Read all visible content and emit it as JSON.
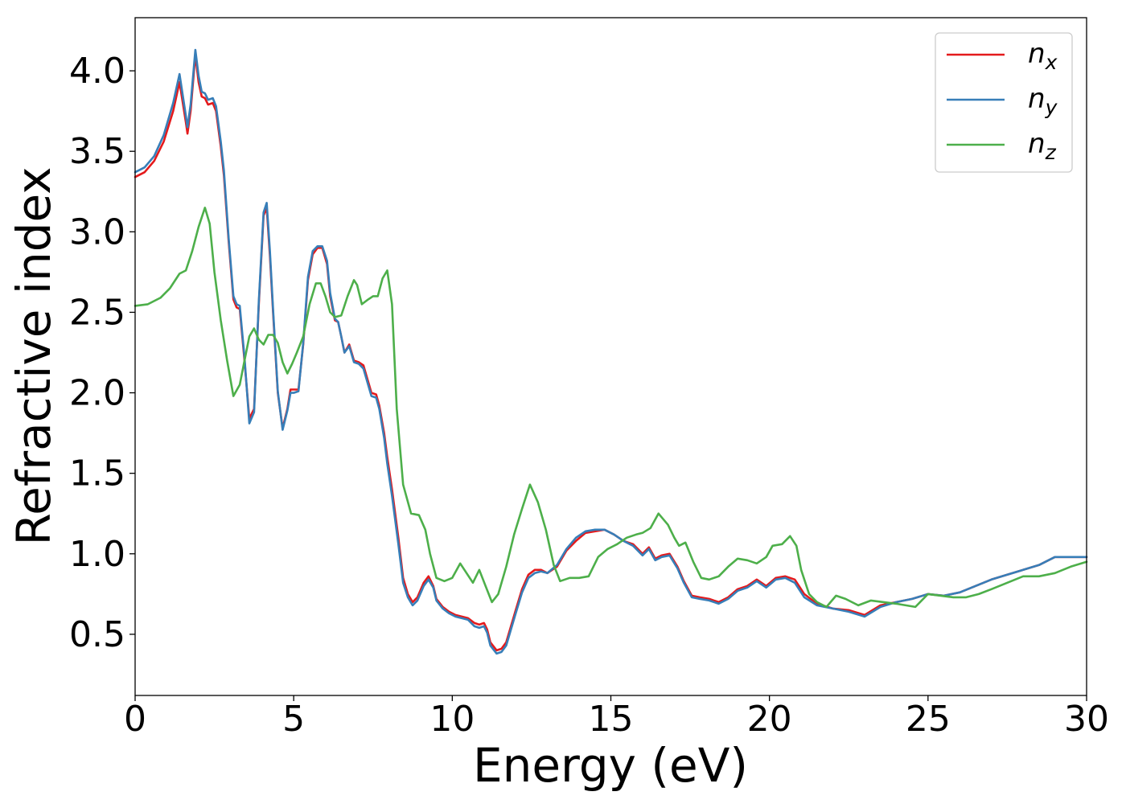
{
  "chart_data": {
    "type": "line",
    "title": "",
    "xlabel": "Energy (eV)",
    "ylabel": "Refractive index",
    "xlim": [
      0,
      30
    ],
    "ylim": [
      0.12,
      4.33
    ],
    "xticks": [
      {
        "value": 0,
        "label": "0"
      },
      {
        "value": 5,
        "label": "5"
      },
      {
        "value": 10,
        "label": "10"
      },
      {
        "value": 15,
        "label": "15"
      },
      {
        "value": 20,
        "label": "20"
      },
      {
        "value": 25,
        "label": "25"
      },
      {
        "value": 30,
        "label": "30"
      }
    ],
    "yticks": [
      {
        "value": 0.5,
        "label": "0.5"
      },
      {
        "value": 1.0,
        "label": "1.0"
      },
      {
        "value": 1.5,
        "label": "1.5"
      },
      {
        "value": 2.0,
        "label": "2.0"
      },
      {
        "value": 2.5,
        "label": "2.5"
      },
      {
        "value": 3.0,
        "label": "3.0"
      },
      {
        "value": 3.5,
        "label": "3.5"
      },
      {
        "value": 4.0,
        "label": "4.0"
      }
    ],
    "grid": false,
    "legend_position": "top-right",
    "series": [
      {
        "name": "n_x",
        "name_base": "n",
        "name_sub": "x",
        "color": "#e41a1c",
        "x": [
          0,
          0.3,
          0.6,
          0.9,
          1.2,
          1.4,
          1.6,
          1.65,
          1.75,
          1.9,
          2.0,
          2.1,
          2.2,
          2.3,
          2.45,
          2.55,
          2.7,
          2.8,
          2.95,
          3.1,
          3.2,
          3.3,
          3.45,
          3.6,
          3.75,
          3.9,
          4.05,
          4.15,
          4.25,
          4.35,
          4.5,
          4.65,
          4.8,
          4.9,
          5.0,
          5.15,
          5.3,
          5.45,
          5.6,
          5.75,
          5.9,
          6.05,
          6.15,
          6.3,
          6.4,
          6.5,
          6.6,
          6.75,
          6.9,
          7.05,
          7.2,
          7.45,
          7.6,
          7.7,
          7.85,
          7.95,
          8.1,
          8.3,
          8.45,
          8.6,
          8.75,
          8.9,
          9.1,
          9.25,
          9.4,
          9.5,
          9.7,
          9.9,
          10.1,
          10.3,
          10.5,
          10.7,
          10.85,
          11.0,
          11.1,
          11.2,
          11.4,
          11.55,
          11.7,
          11.85,
          12.0,
          12.2,
          12.4,
          12.6,
          12.8,
          13.0,
          13.3,
          13.6,
          13.9,
          14.2,
          14.5,
          14.8,
          15.1,
          15.4,
          15.7,
          16.0,
          16.2,
          16.4,
          16.6,
          16.85,
          17.1,
          17.3,
          17.55,
          17.8,
          18.1,
          18.4,
          18.7,
          19.0,
          19.3,
          19.6,
          19.9,
          20.2,
          20.5,
          20.8,
          21.1,
          21.5,
          22.0,
          22.5,
          23.0,
          23.5,
          24.0,
          24.5,
          25.0,
          25.5,
          26.0,
          26.5,
          27.0,
          27.5,
          28.0,
          28.5,
          29.0,
          29.5,
          30.0
        ],
        "y": [
          3.34,
          3.37,
          3.44,
          3.56,
          3.75,
          3.93,
          3.68,
          3.61,
          3.75,
          4.1,
          3.93,
          3.84,
          3.83,
          3.79,
          3.8,
          3.75,
          3.53,
          3.35,
          2.94,
          2.58,
          2.53,
          2.52,
          2.2,
          1.84,
          1.9,
          2.55,
          3.1,
          3.15,
          2.85,
          2.5,
          2.0,
          1.78,
          1.9,
          2.02,
          2.02,
          2.02,
          2.3,
          2.7,
          2.86,
          2.9,
          2.9,
          2.8,
          2.6,
          2.45,
          2.44,
          2.35,
          2.25,
          2.3,
          2.2,
          2.19,
          2.17,
          2.0,
          1.99,
          1.92,
          1.75,
          1.6,
          1.4,
          1.1,
          0.85,
          0.75,
          0.7,
          0.73,
          0.82,
          0.86,
          0.8,
          0.72,
          0.67,
          0.64,
          0.62,
          0.61,
          0.6,
          0.57,
          0.56,
          0.57,
          0.53,
          0.45,
          0.4,
          0.41,
          0.45,
          0.55,
          0.65,
          0.78,
          0.87,
          0.9,
          0.9,
          0.88,
          0.92,
          1.02,
          1.08,
          1.13,
          1.14,
          1.15,
          1.12,
          1.08,
          1.06,
          1.0,
          1.04,
          0.97,
          0.99,
          1.0,
          0.92,
          0.83,
          0.74,
          0.73,
          0.72,
          0.7,
          0.73,
          0.78,
          0.8,
          0.84,
          0.8,
          0.85,
          0.86,
          0.84,
          0.75,
          0.69,
          0.66,
          0.65,
          0.62,
          0.68,
          0.7,
          0.72,
          0.75,
          0.74,
          0.76,
          0.8,
          0.84,
          0.87,
          0.9,
          0.93,
          0.98,
          0.98,
          0.98
        ]
      },
      {
        "name": "n_y",
        "name_base": "n",
        "name_sub": "y",
        "color": "#377eb8",
        "x": [
          0,
          0.3,
          0.6,
          0.9,
          1.2,
          1.4,
          1.6,
          1.65,
          1.75,
          1.9,
          2.0,
          2.1,
          2.2,
          2.3,
          2.45,
          2.55,
          2.7,
          2.8,
          2.95,
          3.1,
          3.2,
          3.3,
          3.45,
          3.6,
          3.75,
          3.9,
          4.05,
          4.15,
          4.25,
          4.35,
          4.5,
          4.65,
          4.8,
          4.9,
          5.0,
          5.15,
          5.3,
          5.45,
          5.6,
          5.75,
          5.9,
          6.05,
          6.15,
          6.3,
          6.4,
          6.5,
          6.6,
          6.75,
          6.9,
          7.05,
          7.2,
          7.45,
          7.6,
          7.7,
          7.85,
          7.95,
          8.1,
          8.3,
          8.45,
          8.6,
          8.75,
          8.9,
          9.1,
          9.25,
          9.4,
          9.5,
          9.7,
          9.9,
          10.1,
          10.3,
          10.5,
          10.7,
          10.85,
          11.0,
          11.1,
          11.2,
          11.4,
          11.55,
          11.7,
          11.85,
          12.0,
          12.2,
          12.4,
          12.6,
          12.8,
          13.0,
          13.3,
          13.6,
          13.9,
          14.2,
          14.5,
          14.8,
          15.1,
          15.4,
          15.7,
          16.0,
          16.2,
          16.4,
          16.6,
          16.85,
          17.1,
          17.3,
          17.55,
          17.8,
          18.1,
          18.4,
          18.7,
          19.0,
          19.3,
          19.6,
          19.9,
          20.2,
          20.5,
          20.8,
          21.1,
          21.5,
          22.0,
          22.5,
          23.0,
          23.5,
          24.0,
          24.5,
          25.0,
          25.5,
          26.0,
          26.5,
          27.0,
          27.5,
          28.0,
          28.5,
          29.0,
          29.5,
          30.0
        ],
        "y": [
          3.37,
          3.4,
          3.47,
          3.6,
          3.8,
          3.98,
          3.72,
          3.65,
          3.79,
          4.13,
          3.97,
          3.87,
          3.86,
          3.82,
          3.83,
          3.78,
          3.56,
          3.38,
          2.96,
          2.6,
          2.55,
          2.54,
          2.22,
          1.81,
          1.88,
          2.57,
          3.12,
          3.18,
          2.88,
          2.52,
          2.01,
          1.77,
          1.89,
          2.0,
          2.0,
          2.01,
          2.31,
          2.72,
          2.88,
          2.91,
          2.91,
          2.82,
          2.62,
          2.46,
          2.44,
          2.35,
          2.25,
          2.29,
          2.19,
          2.18,
          2.15,
          1.98,
          1.97,
          1.9,
          1.72,
          1.56,
          1.36,
          1.06,
          0.82,
          0.73,
          0.68,
          0.71,
          0.8,
          0.84,
          0.79,
          0.71,
          0.66,
          0.63,
          0.61,
          0.6,
          0.59,
          0.55,
          0.54,
          0.55,
          0.51,
          0.43,
          0.38,
          0.39,
          0.43,
          0.53,
          0.63,
          0.76,
          0.85,
          0.88,
          0.89,
          0.88,
          0.93,
          1.03,
          1.1,
          1.14,
          1.15,
          1.15,
          1.12,
          1.08,
          1.05,
          0.99,
          1.03,
          0.96,
          0.98,
          0.99,
          0.91,
          0.82,
          0.73,
          0.72,
          0.71,
          0.69,
          0.72,
          0.77,
          0.79,
          0.83,
          0.79,
          0.84,
          0.85,
          0.82,
          0.73,
          0.68,
          0.66,
          0.64,
          0.61,
          0.67,
          0.7,
          0.72,
          0.75,
          0.74,
          0.76,
          0.8,
          0.84,
          0.87,
          0.9,
          0.93,
          0.98,
          0.98,
          0.98
        ]
      },
      {
        "name": "n_z",
        "name_base": "n",
        "name_sub": "z",
        "color": "#4daf4a",
        "x": [
          0,
          0.4,
          0.8,
          1.1,
          1.4,
          1.6,
          1.8,
          2.0,
          2.2,
          2.35,
          2.5,
          2.7,
          2.9,
          3.1,
          3.3,
          3.45,
          3.6,
          3.75,
          3.9,
          4.05,
          4.2,
          4.35,
          4.5,
          4.65,
          4.8,
          4.95,
          5.1,
          5.3,
          5.5,
          5.7,
          5.85,
          6.0,
          6.15,
          6.3,
          6.5,
          6.7,
          6.9,
          7.0,
          7.15,
          7.35,
          7.5,
          7.65,
          7.8,
          7.95,
          8.1,
          8.25,
          8.45,
          8.7,
          8.95,
          9.15,
          9.3,
          9.5,
          9.75,
          10.0,
          10.25,
          10.45,
          10.65,
          10.85,
          11.05,
          11.25,
          11.45,
          11.7,
          11.95,
          12.2,
          12.45,
          12.7,
          12.95,
          13.2,
          13.4,
          13.7,
          14.0,
          14.3,
          14.6,
          14.9,
          15.2,
          15.5,
          15.8,
          16.0,
          16.25,
          16.5,
          16.8,
          17.0,
          17.15,
          17.35,
          17.6,
          17.85,
          18.1,
          18.4,
          18.7,
          19.0,
          19.3,
          19.6,
          19.9,
          20.1,
          20.4,
          20.65,
          20.85,
          21.0,
          21.25,
          21.5,
          21.8,
          22.1,
          22.4,
          22.8,
          23.2,
          23.6,
          24.0,
          24.3,
          24.6,
          25.0,
          25.4,
          25.8,
          26.2,
          26.6,
          27.0,
          27.5,
          28.0,
          28.5,
          29.0,
          29.5,
          30.0
        ],
        "y": [
          2.54,
          2.55,
          2.59,
          2.65,
          2.74,
          2.76,
          2.88,
          3.03,
          3.15,
          3.05,
          2.75,
          2.45,
          2.2,
          1.98,
          2.05,
          2.2,
          2.35,
          2.4,
          2.33,
          2.3,
          2.36,
          2.36,
          2.31,
          2.19,
          2.12,
          2.18,
          2.25,
          2.35,
          2.55,
          2.68,
          2.68,
          2.6,
          2.5,
          2.47,
          2.48,
          2.6,
          2.7,
          2.67,
          2.55,
          2.58,
          2.6,
          2.6,
          2.71,
          2.76,
          2.55,
          1.9,
          1.43,
          1.25,
          1.24,
          1.15,
          1.0,
          0.85,
          0.83,
          0.85,
          0.94,
          0.88,
          0.82,
          0.9,
          0.8,
          0.7,
          0.75,
          0.92,
          1.12,
          1.28,
          1.43,
          1.32,
          1.15,
          0.93,
          0.83,
          0.85,
          0.85,
          0.86,
          0.98,
          1.03,
          1.06,
          1.1,
          1.12,
          1.13,
          1.16,
          1.25,
          1.18,
          1.1,
          1.05,
          1.07,
          0.95,
          0.85,
          0.84,
          0.86,
          0.92,
          0.97,
          0.96,
          0.94,
          0.98,
          1.05,
          1.06,
          1.11,
          1.05,
          0.9,
          0.75,
          0.7,
          0.67,
          0.74,
          0.72,
          0.68,
          0.71,
          0.7,
          0.69,
          0.68,
          0.67,
          0.75,
          0.74,
          0.73,
          0.73,
          0.75,
          0.78,
          0.82,
          0.86,
          0.86,
          0.88,
          0.92,
          0.95
        ]
      }
    ]
  }
}
